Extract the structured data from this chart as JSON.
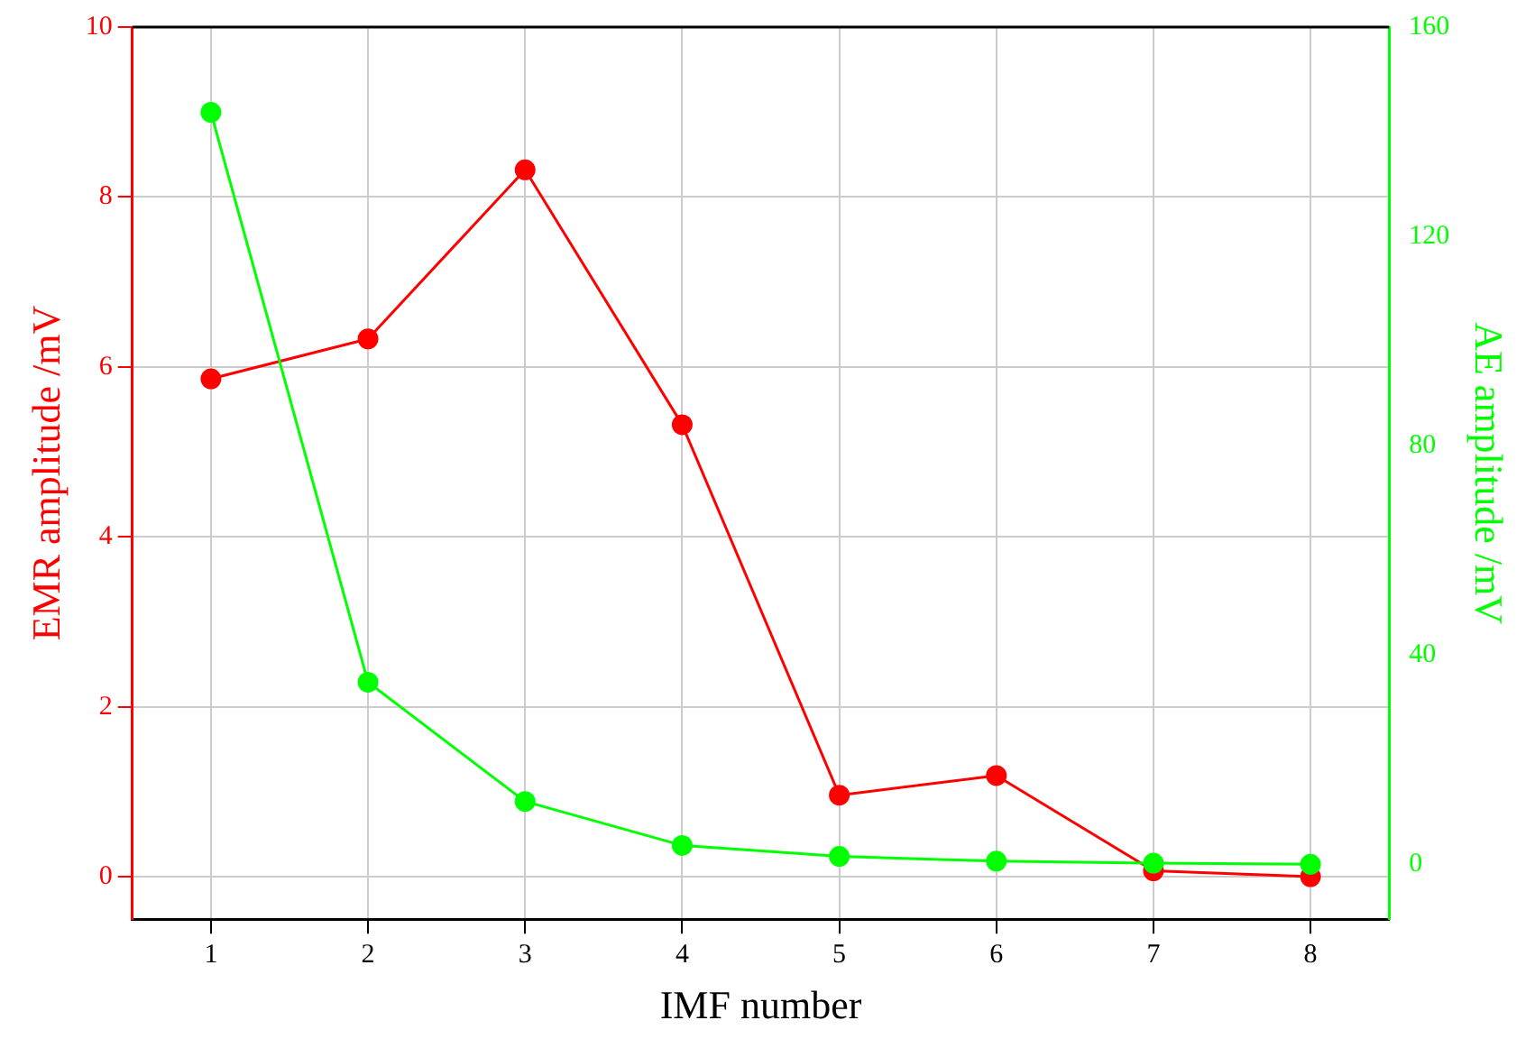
{
  "chart_data": {
    "type": "line",
    "xlabel": "IMF number",
    "ylabel": "EMR amplitude /mV",
    "y2label": "AE amplitude /mV",
    "x": [
      1,
      2,
      3,
      4,
      5,
      6,
      7,
      8
    ],
    "xlim": [
      0.5,
      8.5
    ],
    "xticks": [
      1,
      2,
      3,
      4,
      5,
      6,
      7,
      8
    ],
    "ylim": [
      -0.5,
      10
    ],
    "yticks": [
      0,
      2,
      4,
      6,
      8,
      10
    ],
    "y2lim": [
      -10.5,
      160
    ],
    "y2ticks": [
      0,
      40,
      80,
      120,
      160
    ],
    "grid": true,
    "legend": false,
    "marker": "circle",
    "line_style": "solid",
    "series": [
      {
        "color": "#ff0000",
        "values": [
          5.86,
          6.33,
          8.32,
          5.32,
          0.96,
          1.19,
          0.07,
          0.0
        ]
      },
      {
        "color": "#00ff00",
        "axis": "y2",
        "values": [
          143.7,
          34.8,
          12.0,
          3.6,
          1.5,
          0.6,
          0.2,
          0.0
        ]
      }
    ]
  }
}
